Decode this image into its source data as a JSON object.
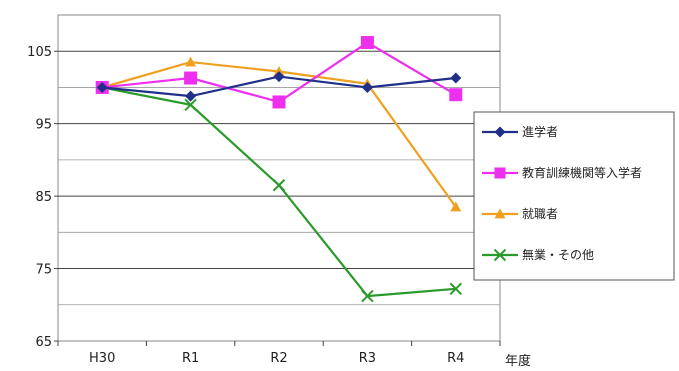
{
  "chart_data": {
    "type": "line",
    "title": "",
    "xlabel": "年度",
    "ylabel": "",
    "categories": [
      "H30",
      "R1",
      "R2",
      "R3",
      "R4"
    ],
    "ylim": [
      65,
      110
    ],
    "yticks": [
      65,
      75,
      85,
      95,
      105
    ],
    "grid": true,
    "legend_position": "right",
    "series": [
      {
        "name": "進学者",
        "color": "#1f2f8a",
        "marker": "diamond",
        "values": [
          100,
          98.8,
          101.5,
          100,
          101.3
        ]
      },
      {
        "name": "教育訓練機関等入学者",
        "color": "#ee30ee",
        "marker": "square",
        "values": [
          100,
          101.3,
          98,
          106.2,
          99
        ]
      },
      {
        "name": "就職者",
        "color": "#f0a020",
        "marker": "triangle",
        "values": [
          100,
          103.5,
          102.2,
          100.5,
          83.5
        ]
      },
      {
        "name": "無業・その他",
        "color": "#2a9a2a",
        "marker": "x",
        "values": [
          100,
          97.6,
          86.5,
          71.2,
          72.2
        ]
      }
    ]
  }
}
